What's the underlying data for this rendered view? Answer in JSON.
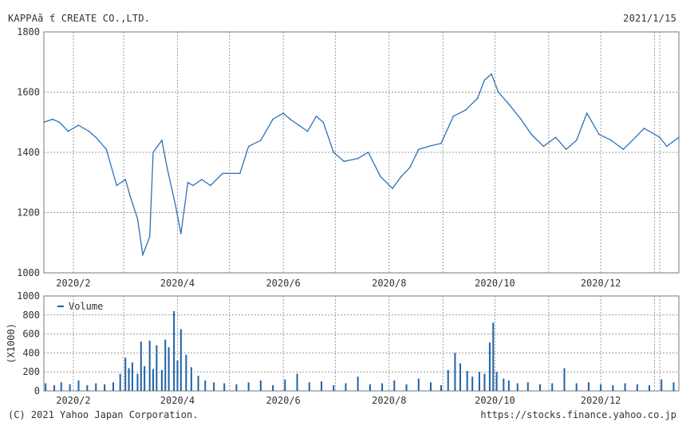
{
  "header": {
    "title": "KAPPAă ť CREATE CO.,LTD.",
    "date": "2021/1/15"
  },
  "footer": {
    "copyright": "(C) 2021 Yahoo Japan Corporation.",
    "url": "https://stocks.finance.yahoo.co.jp"
  },
  "colors": {
    "line": "#2b72b8",
    "bar": "#1f62a8",
    "grid": "#9a9a9a",
    "frame": "#777777"
  },
  "chart_data": [
    {
      "type": "line",
      "title": "KAPPAă ť CREATE CO.,LTD.",
      "ylim": [
        1000,
        1800
      ],
      "yticks": [
        1000,
        1200,
        1400,
        1600,
        1800
      ],
      "xlim": [
        "2020-01-15",
        "2021-01-15"
      ],
      "xtick_labels": [
        "2020/2",
        "2020/4",
        "2020/6",
        "2020/8",
        "2020/10",
        "2020/12"
      ],
      "grid": true,
      "series": [
        {
          "x": [
            "2020-01-15",
            "2020-01-20",
            "2020-01-24",
            "2020-01-29",
            "2020-02-04",
            "2020-02-10",
            "2020-02-14",
            "2020-02-20",
            "2020-02-26",
            "2020-03-02",
            "2020-03-05",
            "2020-03-09",
            "2020-03-12",
            "2020-03-16",
            "2020-03-18",
            "2020-03-23",
            "2020-03-26",
            "2020-03-31",
            "2020-04-03",
            "2020-04-07",
            "2020-04-10",
            "2020-04-15",
            "2020-04-20",
            "2020-04-27",
            "2020-05-07",
            "2020-05-12",
            "2020-05-19",
            "2020-05-26",
            "2020-06-01",
            "2020-06-05",
            "2020-06-10",
            "2020-06-15",
            "2020-06-20",
            "2020-06-24",
            "2020-06-30",
            "2020-07-06",
            "2020-07-14",
            "2020-07-20",
            "2020-07-27",
            "2020-08-03",
            "2020-08-08",
            "2020-08-13",
            "2020-08-18",
            "2020-08-24",
            "2020-08-31",
            "2020-09-07",
            "2020-09-14",
            "2020-09-21",
            "2020-09-25",
            "2020-09-29",
            "2020-10-03",
            "2020-10-09",
            "2020-10-16",
            "2020-10-22",
            "2020-10-29",
            "2020-11-05",
            "2020-11-11",
            "2020-11-17",
            "2020-11-23",
            "2020-11-30",
            "2020-12-07",
            "2020-12-14",
            "2020-12-21",
            "2020-12-26",
            "2021-01-04",
            "2021-01-08",
            "2021-01-15"
          ],
          "y": [
            1500,
            1510,
            1500,
            1470,
            1490,
            1470,
            1450,
            1410,
            1290,
            1310,
            1250,
            1180,
            1060,
            1120,
            1400,
            1440,
            1350,
            1220,
            1130,
            1300,
            1290,
            1310,
            1290,
            1330,
            1330,
            1420,
            1440,
            1510,
            1530,
            1510,
            1490,
            1470,
            1520,
            1500,
            1400,
            1370,
            1380,
            1400,
            1320,
            1280,
            1320,
            1350,
            1410,
            1420,
            1430,
            1520,
            1540,
            1580,
            1640,
            1660,
            1600,
            1560,
            1510,
            1460,
            1420,
            1450,
            1410,
            1440,
            1530,
            1460,
            1440,
            1410,
            1450,
            1480,
            1450,
            1420,
            1450
          ]
        }
      ]
    },
    {
      "type": "bar",
      "ylabel": "(X1000)",
      "legend": "Volume",
      "legend_placement": "top-left",
      "ylim": [
        0,
        1000
      ],
      "yticks": [
        0,
        200,
        400,
        600,
        800,
        1000
      ],
      "xtick_labels": [
        "2020/2",
        "2020/4",
        "2020/6",
        "2020/8",
        "2020/10",
        "2020/12"
      ],
      "grid": true,
      "series": [
        {
          "name": "Volume",
          "x": [
            "2020-01-16",
            "2020-01-21",
            "2020-01-25",
            "2020-01-30",
            "2020-02-04",
            "2020-02-09",
            "2020-02-14",
            "2020-02-19",
            "2020-02-24",
            "2020-02-28",
            "2020-03-02",
            "2020-03-04",
            "2020-03-06",
            "2020-03-09",
            "2020-03-11",
            "2020-03-13",
            "2020-03-16",
            "2020-03-18",
            "2020-03-20",
            "2020-03-23",
            "2020-03-25",
            "2020-03-27",
            "2020-03-30",
            "2020-04-01",
            "2020-04-03",
            "2020-04-06",
            "2020-04-09",
            "2020-04-13",
            "2020-04-17",
            "2020-04-22",
            "2020-04-28",
            "2020-05-05",
            "2020-05-12",
            "2020-05-19",
            "2020-05-26",
            "2020-06-02",
            "2020-06-09",
            "2020-06-16",
            "2020-06-23",
            "2020-06-30",
            "2020-07-07",
            "2020-07-14",
            "2020-07-21",
            "2020-07-28",
            "2020-08-04",
            "2020-08-11",
            "2020-08-18",
            "2020-08-25",
            "2020-08-31",
            "2020-09-04",
            "2020-09-08",
            "2020-09-11",
            "2020-09-15",
            "2020-09-18",
            "2020-09-22",
            "2020-09-25",
            "2020-09-28",
            "2020-09-30",
            "2020-10-02",
            "2020-10-06",
            "2020-10-09",
            "2020-10-14",
            "2020-10-20",
            "2020-10-27",
            "2020-11-03",
            "2020-11-10",
            "2020-11-17",
            "2020-11-24",
            "2020-12-01",
            "2020-12-08",
            "2020-12-15",
            "2020-12-22",
            "2020-12-29",
            "2021-01-05",
            "2021-01-12"
          ],
          "values": [
            80,
            60,
            90,
            70,
            110,
            60,
            80,
            70,
            90,
            180,
            350,
            240,
            300,
            180,
            520,
            260,
            530,
            230,
            480,
            220,
            540,
            460,
            840,
            320,
            650,
            380,
            250,
            160,
            110,
            90,
            80,
            70,
            90,
            110,
            60,
            120,
            180,
            90,
            100,
            60,
            80,
            150,
            70,
            80,
            110,
            70,
            130,
            90,
            60,
            220,
            400,
            290,
            210,
            150,
            200,
            180,
            510,
            720,
            200,
            130,
            110,
            80,
            90,
            70,
            80,
            240,
            80,
            90,
            70,
            60,
            80,
            70,
            60,
            120,
            90
          ]
        }
      ]
    }
  ]
}
